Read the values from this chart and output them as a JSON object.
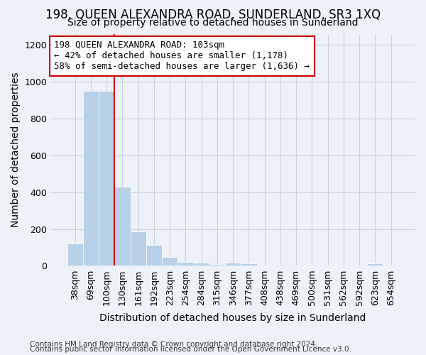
{
  "title": "198, QUEEN ALEXANDRA ROAD, SUNDERLAND, SR3 1XQ",
  "subtitle": "Size of property relative to detached houses in Sunderland",
  "xlabel": "Distribution of detached houses by size in Sunderland",
  "ylabel": "Number of detached properties",
  "footnote1": "Contains HM Land Registry data © Crown copyright and database right 2024.",
  "footnote2": "Contains public sector information licensed under the Open Government Licence v3.0.",
  "categories": [
    "38sqm",
    "69sqm",
    "100sqm",
    "130sqm",
    "161sqm",
    "192sqm",
    "223sqm",
    "254sqm",
    "284sqm",
    "315sqm",
    "346sqm",
    "377sqm",
    "408sqm",
    "438sqm",
    "469sqm",
    "500sqm",
    "531sqm",
    "562sqm",
    "592sqm",
    "623sqm",
    "654sqm"
  ],
  "values": [
    120,
    950,
    948,
    430,
    185,
    115,
    48,
    20,
    18,
    8,
    18,
    15,
    0,
    0,
    0,
    0,
    0,
    0,
    0,
    12,
    0
  ],
  "bar_color": "#b8d0e8",
  "bar_edge_color": "#b8d0e8",
  "grid_color": "#c8d4e4",
  "background_color": "#eef1f8",
  "ylim": [
    0,
    1260
  ],
  "yticks": [
    0,
    200,
    400,
    600,
    800,
    1000,
    1200
  ],
  "annotation_text": "198 QUEEN ALEXANDRA ROAD: 103sqm\n← 42% of detached houses are smaller (1,178)\n58% of semi-detached houses are larger (1,636) →",
  "annotation_box_color": "#ffffff",
  "annotation_border_color": "#cc0000",
  "red_line_bar_index": 2,
  "title_fontsize": 12,
  "subtitle_fontsize": 10,
  "axis_label_fontsize": 10,
  "tick_fontsize": 9,
  "annot_fontsize": 9,
  "footnote_fontsize": 7.5
}
